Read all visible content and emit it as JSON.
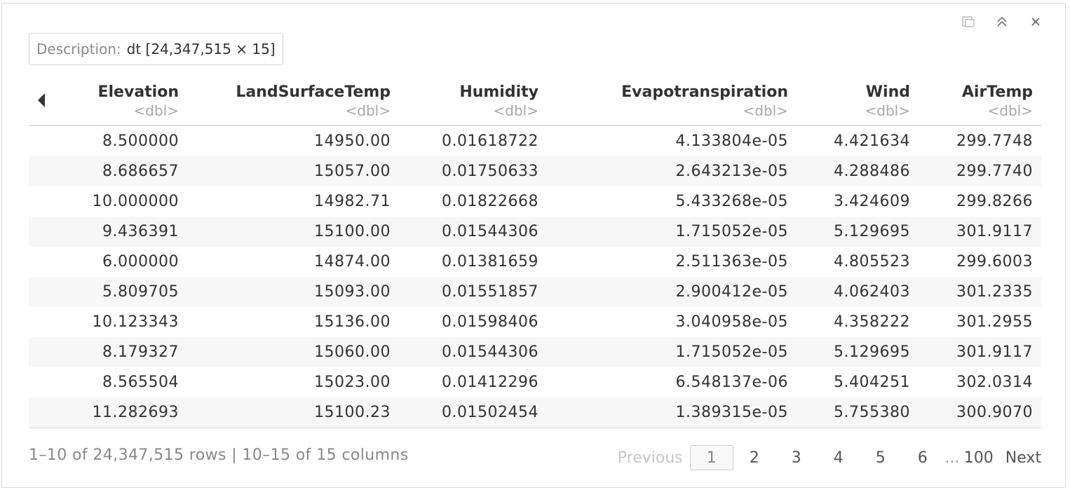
{
  "description": {
    "key": "Description:",
    "value": "dt [24,347,515 × 15]"
  },
  "columns": [
    {
      "name": "Elevation",
      "type": "<dbl>"
    },
    {
      "name": "LandSurfaceTemp",
      "type": "<dbl>"
    },
    {
      "name": "Humidity",
      "type": "<dbl>"
    },
    {
      "name": "Evapotranspiration",
      "type": "<dbl>"
    },
    {
      "name": "Wind",
      "type": "<dbl>"
    },
    {
      "name": "AirTemp",
      "type": "<dbl>"
    }
  ],
  "rows": [
    [
      "8.500000",
      "14950.00",
      "0.01618722",
      "4.133804e-05",
      "4.421634",
      "299.7748"
    ],
    [
      "8.686657",
      "15057.00",
      "0.01750633",
      "2.643213e-05",
      "4.288486",
      "299.7740"
    ],
    [
      "10.000000",
      "14982.71",
      "0.01822668",
      "5.433268e-05",
      "3.424609",
      "299.8266"
    ],
    [
      "9.436391",
      "15100.00",
      "0.01544306",
      "1.715052e-05",
      "5.129695",
      "301.9117"
    ],
    [
      "6.000000",
      "14874.00",
      "0.01381659",
      "2.511363e-05",
      "4.805523",
      "299.6003"
    ],
    [
      "5.809705",
      "15093.00",
      "0.01551857",
      "2.900412e-05",
      "4.062403",
      "301.2335"
    ],
    [
      "10.123343",
      "15136.00",
      "0.01598406",
      "3.040958e-05",
      "4.358222",
      "301.2955"
    ],
    [
      "8.179327",
      "15060.00",
      "0.01544306",
      "1.715052e-05",
      "5.129695",
      "301.9117"
    ],
    [
      "8.565504",
      "15023.00",
      "0.01412296",
      "6.548137e-06",
      "5.404251",
      "302.0314"
    ],
    [
      "11.282693",
      "15100.23",
      "0.01502454",
      "1.389315e-05",
      "5.755380",
      "300.9070"
    ]
  ],
  "footer": {
    "info": "1–10 of 24,347,515 rows | 10–15 of 15 columns",
    "previous": "Previous",
    "pages": [
      "1",
      "2",
      "3",
      "4",
      "5",
      "6"
    ],
    "ellipsis": "...",
    "last_page": "100",
    "next": "Next"
  },
  "icons": {
    "top_bar": [
      "export-icon",
      "collapse-icon",
      "close-icon"
    ],
    "column_nav": "triangle-left-icon"
  }
}
